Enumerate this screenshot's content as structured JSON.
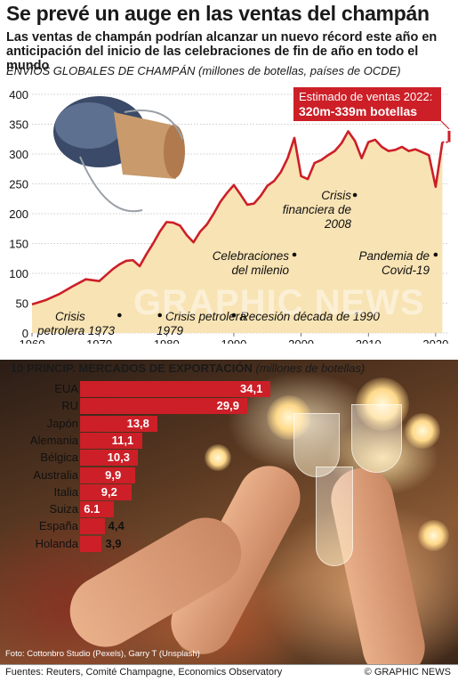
{
  "header": {
    "title": "Se prevé un auge en las ventas del champán",
    "subtitle": "Las ventas de champán podrían alcanzar un nuevo récord este año en anticipación del inicio de las celebraciones de fin de año en todo el mundo"
  },
  "colors": {
    "accent_red": "#cc1f27",
    "area_fill": "#f8e2b0"
  },
  "chart_data": [
    {
      "type": "area",
      "title": "ENVÍOS GLOBALES DE CHAMPÁN (millones de botellas, países de OCDE)",
      "xlabel": "",
      "ylabel": "",
      "xlim": [
        1960,
        2022
      ],
      "ylim": [
        0,
        400
      ],
      "x_ticks": [
        1960,
        1970,
        1980,
        1990,
        2000,
        2010,
        2020
      ],
      "y_ticks": [
        0,
        50,
        100,
        150,
        200,
        250,
        300,
        350,
        400
      ],
      "grid": true,
      "series": [
        {
          "x": [
            1960,
            1962,
            1964,
            1966,
            1968,
            1970,
            1972,
            1973,
            1974,
            1975,
            1976,
            1977,
            1978,
            1979,
            1980,
            1981,
            1982,
            1983,
            1984,
            1985,
            1986,
            1987,
            1988,
            1989,
            1990,
            1991,
            1992,
            1993,
            1994,
            1995,
            1996,
            1997,
            1998,
            1999,
            2000,
            2001,
            2002,
            2003,
            2004,
            2005,
            2006,
            2007,
            2008,
            2009,
            2010,
            2011,
            2012,
            2013,
            2014,
            2015,
            2016,
            2017,
            2018,
            2019,
            2020,
            2021
          ],
          "y": [
            48,
            55,
            65,
            78,
            90,
            87,
            107,
            115,
            121,
            122,
            112,
            132,
            150,
            170,
            186,
            185,
            180,
            164,
            152,
            170,
            182,
            200,
            220,
            235,
            248,
            232,
            215,
            217,
            230,
            247,
            255,
            270,
            293,
            327,
            263,
            258,
            285,
            290,
            298,
            305,
            318,
            338,
            322,
            293,
            320,
            324,
            312,
            305,
            307,
            312,
            305,
            308,
            303,
            298,
            245,
            320
          ]
        }
      ],
      "estimate": {
        "year": 2022,
        "low": 320,
        "high": 339
      },
      "estimate_label": "Estimado de ventas 2022:",
      "estimate_value": "320m-339m botellas",
      "annotations": [
        {
          "year": 1973,
          "label": "Crisis petrolera 1973"
        },
        {
          "year": 1979,
          "label": "Crisis petrolera 1979"
        },
        {
          "year": 1990,
          "label": "Recesión década de 1990"
        },
        {
          "year": 1999,
          "label": "Celebraciones del milenio"
        },
        {
          "year": 2008,
          "label": "Crisis financiera de 2008"
        },
        {
          "year": 2020,
          "label": "Pandemia de Covid-19"
        }
      ]
    },
    {
      "type": "bar",
      "title": "10 PRINCIP. MERCADOS DE EXPORTACIÓN",
      "unit": "(millones de botellas)",
      "categories": [
        "EUA",
        "RU",
        "Japón",
        "Alemania",
        "Bélgica",
        "Australia",
        "Italia",
        "Suiza",
        "España",
        "Holanda"
      ],
      "values": [
        34.1,
        29.9,
        13.8,
        11.1,
        10.3,
        9.9,
        9.2,
        6.1,
        4.4,
        3.9
      ],
      "value_labels": [
        "34,1",
        "29,9",
        "13,8",
        "11,1",
        "10,3",
        "9,9",
        "9,2",
        "6.1",
        "4,4",
        "3,9"
      ]
    }
  ],
  "photo": {
    "credit": "Foto: Cottonbro Studio (Pexels), Garry T (Unsplash)"
  },
  "watermark": "GRAPHIC NEWS",
  "footer": {
    "sources": "Fuentes: Reuters, Comité Champagne, Economics Observatory",
    "copyright": "© GRAPHIC NEWS"
  }
}
